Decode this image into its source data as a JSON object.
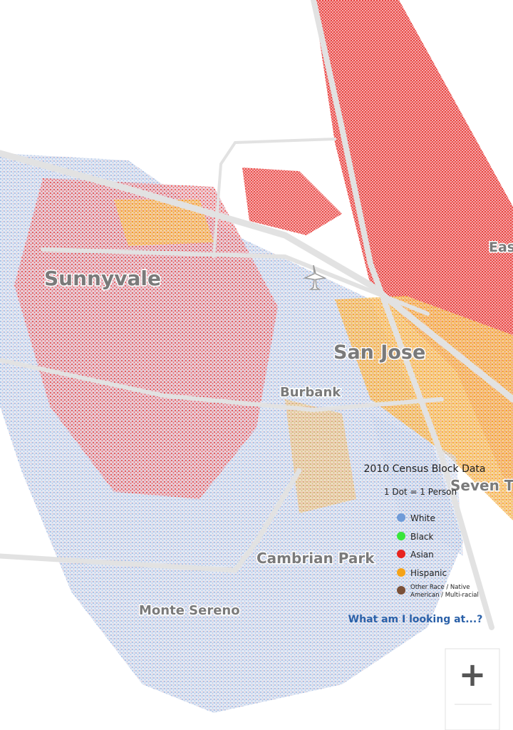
{
  "map": {
    "place_labels": [
      "Sunnyvale",
      "San Jose",
      "Burbank",
      "Cambrian Park",
      "Monte Sereno",
      "Seven T",
      "Eas"
    ]
  },
  "legend": {
    "title": "2010 Census Block Data",
    "subtitle": "1 Dot = 1 Person",
    "items": [
      {
        "label": "White",
        "color": "#6f9bd8"
      },
      {
        "label": "Black",
        "color": "#39e639"
      },
      {
        "label": "Asian",
        "color": "#e8231e"
      },
      {
        "label": "Hispanic",
        "color": "#f5a318"
      },
      {
        "label_lines": [
          "Other Race / Native",
          "American / Multi-racial"
        ],
        "color": "#7a5038"
      }
    ]
  },
  "link": "What am I looking at...?",
  "zoom": {
    "in": "+"
  }
}
